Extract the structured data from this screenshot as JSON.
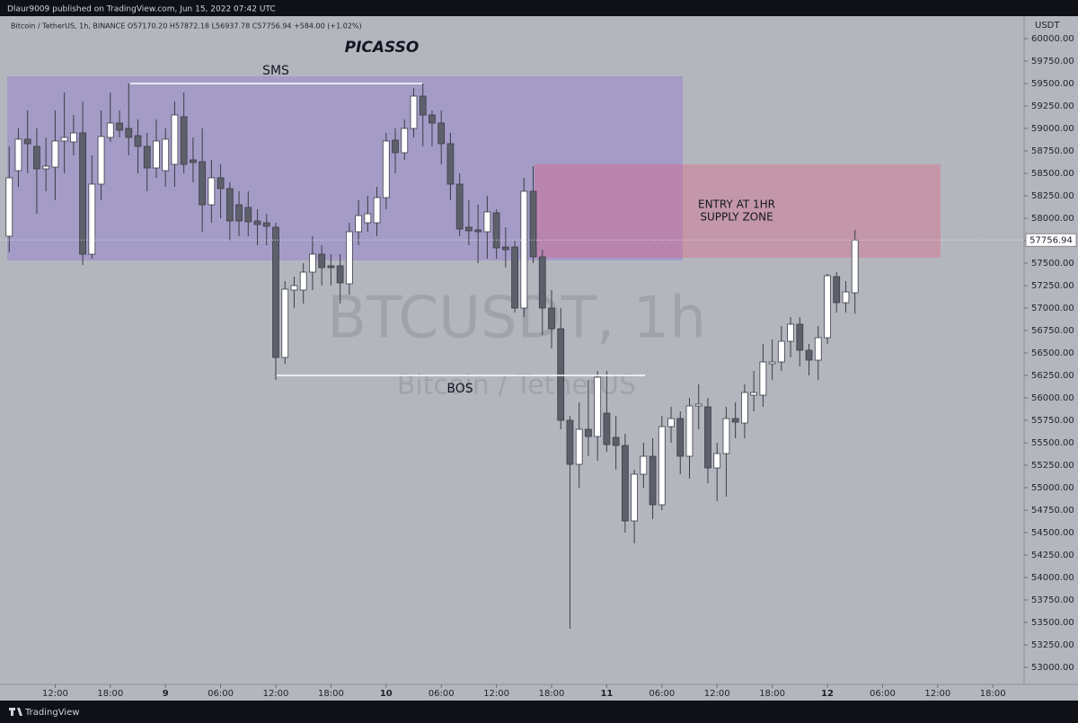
{
  "header": "Dlaur9009 published on TradingView.com, Jun 15, 2022 07:42 UTC",
  "footer": "TradingView",
  "chart_data": {
    "type": "candlestick",
    "legend_text": "Bitcoin / TetherUS, 1h, BINANCE  O57170.20  H57872.18  L56937.78  C57756.94  +584.00 (+1.02%)",
    "y_axis_label": "USDT",
    "watermark": "BTCUSDT, 1h",
    "watermark_sub": "Bitcoin / TetherUS",
    "annotations": {
      "title": "PICASSO",
      "sms": "SMS",
      "bos": "BOS",
      "zone_lines": [
        "ENTRY AT 1HR",
        "SUPPLY ZONE"
      ]
    },
    "up_color": "#ffffff",
    "down_color": "#5d606b",
    "wick_color": "#3b3e48",
    "last_price": 57756.94,
    "xlim": [
      -18,
      93.4
    ],
    "ylim": [
      52810,
      60210
    ],
    "xticks": [
      {
        "value": -12,
        "label": "12:00"
      },
      {
        "value": -6,
        "label": "18:00"
      },
      {
        "value": 0,
        "label": "9"
      },
      {
        "value": 6,
        "label": "06:00"
      },
      {
        "value": 12,
        "label": "12:00"
      },
      {
        "value": 18,
        "label": "18:00"
      },
      {
        "value": 24,
        "label": "10"
      },
      {
        "value": 30,
        "label": "06:00"
      },
      {
        "value": 36,
        "label": "12:00"
      },
      {
        "value": 42,
        "label": "18:00"
      },
      {
        "value": 48,
        "label": "11"
      },
      {
        "value": 54,
        "label": "06:00"
      },
      {
        "value": 60,
        "label": "12:00"
      },
      {
        "value": 66,
        "label": "18:00"
      },
      {
        "value": 72,
        "label": "12"
      },
      {
        "value": 78,
        "label": "06:00"
      },
      {
        "value": 84,
        "label": "12:00"
      },
      {
        "value": 90,
        "label": "18:00"
      }
    ],
    "yticks": [
      {
        "value": 53000,
        "label": "53000.00"
      },
      {
        "value": 53250,
        "label": "53250.00"
      },
      {
        "value": 53500,
        "label": "53500.00"
      },
      {
        "value": 53750,
        "label": "53750.00"
      },
      {
        "value": 54000,
        "label": "54000.00"
      },
      {
        "value": 54250,
        "label": "54250.00"
      },
      {
        "value": 54500,
        "label": "54500.00"
      },
      {
        "value": 54750,
        "label": "54750.00"
      },
      {
        "value": 55000,
        "label": "55000.00"
      },
      {
        "value": 55250,
        "label": "55250.00"
      },
      {
        "value": 55500,
        "label": "55500.00"
      },
      {
        "value": 55750,
        "label": "55750.00"
      },
      {
        "value": 56000,
        "label": "56000.00"
      },
      {
        "value": 56250,
        "label": "56250.00"
      },
      {
        "value": 56500,
        "label": "56500.00"
      },
      {
        "value": 56750,
        "label": "56750.00"
      },
      {
        "value": 57000,
        "label": "57000.00"
      },
      {
        "value": 57250,
        "label": "57250.00"
      },
      {
        "value": 57500,
        "label": "57500.00"
      },
      {
        "value": 57750,
        "label": "57750.00"
      },
      {
        "value": 58000,
        "label": "58000.00"
      },
      {
        "value": 58250,
        "label": "58250.00"
      },
      {
        "value": 58500,
        "label": "58500.00"
      },
      {
        "value": 58750,
        "label": "58750.00"
      },
      {
        "value": 59000,
        "label": "59000.00"
      },
      {
        "value": 59250,
        "label": "59250.00"
      },
      {
        "value": 59500,
        "label": "59500.00"
      },
      {
        "value": 59750,
        "label": "59750.00"
      },
      {
        "value": 60000,
        "label": "60000.00"
      }
    ],
    "x": [
      -17,
      -16,
      -15,
      -14,
      -13,
      -12,
      -11,
      -10,
      -9,
      -8,
      -7,
      -6,
      -5,
      -4,
      -3,
      -2,
      -1,
      0,
      1,
      2,
      3,
      4,
      5,
      6,
      7,
      8,
      9,
      10,
      11,
      12,
      13,
      14,
      15,
      16,
      17,
      18,
      19,
      20,
      21,
      22,
      23,
      24,
      25,
      26,
      27,
      28,
      29,
      30,
      31,
      32,
      33,
      34,
      35,
      36,
      37,
      38,
      39,
      40,
      41,
      42,
      43,
      44,
      45,
      46,
      47,
      48,
      49,
      50,
      51,
      52,
      53,
      54,
      55,
      56,
      57,
      58,
      59,
      60,
      61,
      62,
      63,
      64,
      65,
      66,
      67,
      68,
      69,
      70,
      71,
      72,
      73,
      74,
      75
    ],
    "open": [
      57800,
      58530,
      58880,
      58800,
      58550,
      58570,
      58860,
      58850,
      58950,
      57600,
      58380,
      58900,
      59060,
      59000,
      58920,
      58800,
      58560,
      58530,
      58600,
      59130,
      58650,
      58630,
      58150,
      58450,
      58330,
      58150,
      58120,
      57970,
      57950,
      57900,
      56450,
      57200,
      57200,
      57400,
      57600,
      57470,
      57470,
      57270,
      57850,
      57950,
      57950,
      58230,
      58870,
      58730,
      59000,
      59360,
      59150,
      59060,
      58830,
      58380,
      57900,
      57870,
      57850,
      58060,
      57680,
      57680,
      57000,
      58300,
      57570,
      57000,
      56770,
      55750,
      55260,
      55650,
      55570,
      55830,
      55560,
      55470,
      54630,
      55150,
      55350,
      54810,
      55680,
      55770,
      55350,
      55910,
      55900,
      55220,
      55380,
      55770,
      55720,
      56030,
      56030,
      56380,
      56400,
      56630,
      56820,
      56530,
      56420,
      56670,
      57350,
      57060,
      57170.2
    ],
    "high": [
      58800,
      59000,
      59200,
      59000,
      58900,
      59200,
      59400,
      59150,
      59300,
      58700,
      59200,
      59400,
      59200,
      59500,
      59100,
      58950,
      59100,
      59000,
      59300,
      59400,
      58900,
      59000,
      58650,
      58600,
      58400,
      58300,
      58300,
      58100,
      58050,
      57950,
      57300,
      57350,
      57500,
      57800,
      57700,
      57600,
      57600,
      57950,
      58200,
      58250,
      58350,
      58950,
      59000,
      59100,
      59450,
      59500,
      59200,
      59200,
      58950,
      58500,
      58200,
      58150,
      58250,
      58100,
      57900,
      57750,
      58450,
      58580,
      57650,
      57200,
      57000,
      55800,
      55950,
      56200,
      56300,
      56300,
      55800,
      55600,
      55200,
      55500,
      55550,
      55800,
      55900,
      55850,
      56000,
      56150,
      56000,
      55500,
      55900,
      55950,
      56150,
      56300,
      56600,
      56650,
      56800,
      56900,
      56900,
      56600,
      56800,
      57380,
      57400,
      57300,
      57872.18
    ],
    "low": [
      57620,
      58350,
      58500,
      58050,
      58300,
      58200,
      58500,
      58700,
      57480,
      57550,
      58200,
      58850,
      58900,
      58700,
      58500,
      58300,
      58450,
      58350,
      58350,
      58500,
      58400,
      57850,
      57950,
      58000,
      57750,
      57800,
      57800,
      57700,
      57700,
      56200,
      56380,
      57000,
      57050,
      57200,
      57250,
      57250,
      57050,
      57150,
      57700,
      57850,
      57800,
      58100,
      58500,
      58650,
      58900,
      58800,
      58800,
      58600,
      58200,
      57800,
      57700,
      57500,
      57550,
      57550,
      57450,
      56950,
      56900,
      57500,
      56700,
      56550,
      55650,
      53430,
      55000,
      55350,
      55300,
      55400,
      55200,
      54500,
      54380,
      55000,
      54650,
      54750,
      55500,
      55150,
      55100,
      55650,
      55050,
      54850,
      54900,
      55550,
      55550,
      55850,
      55900,
      56200,
      56300,
      56450,
      56350,
      56250,
      56200,
      56600,
      56950,
      56950,
      56937.78
    ],
    "close": [
      58450,
      58880,
      58830,
      58550,
      58580,
      58860,
      58900,
      58950,
      57600,
      58380,
      58910,
      59060,
      58980,
      58900,
      58800,
      58560,
      58860,
      58880,
      59150,
      58600,
      58620,
      58150,
      58450,
      58330,
      57970,
      57970,
      57960,
      57930,
      57910,
      56450,
      57210,
      57250,
      57400,
      57600,
      57450,
      57450,
      57280,
      57850,
      58030,
      58050,
      58230,
      58860,
      58730,
      59000,
      59360,
      59150,
      59060,
      58830,
      58380,
      57880,
      57860,
      57850,
      58070,
      57670,
      57650,
      57000,
      58300,
      57570,
      57000,
      56770,
      55750,
      55260,
      55650,
      55570,
      56230,
      55480,
      55470,
      54630,
      55150,
      55350,
      54810,
      55680,
      55770,
      55350,
      55910,
      55930,
      55220,
      55380,
      55770,
      55730,
      56060,
      56060,
      56400,
      56400,
      56630,
      56820,
      56530,
      56420,
      56670,
      57360,
      57060,
      57180,
      57756.94
    ]
  }
}
